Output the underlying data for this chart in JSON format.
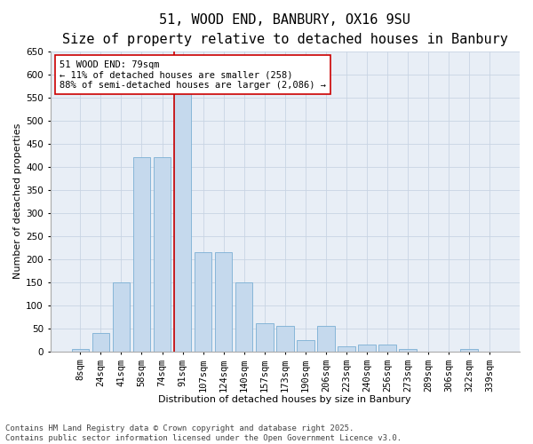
{
  "title": "51, WOOD END, BANBURY, OX16 9SU",
  "subtitle": "Size of property relative to detached houses in Banbury",
  "xlabel": "Distribution of detached houses by size in Banbury",
  "ylabel": "Number of detached properties",
  "categories": [
    "8sqm",
    "24sqm",
    "41sqm",
    "58sqm",
    "74sqm",
    "91sqm",
    "107sqm",
    "124sqm",
    "140sqm",
    "157sqm",
    "173sqm",
    "190sqm",
    "206sqm",
    "223sqm",
    "240sqm",
    "256sqm",
    "273sqm",
    "289sqm",
    "306sqm",
    "322sqm",
    "339sqm"
  ],
  "values": [
    5,
    40,
    150,
    420,
    420,
    570,
    215,
    215,
    150,
    60,
    55,
    25,
    55,
    10,
    15,
    15,
    5,
    0,
    0,
    5,
    0
  ],
  "bar_color": "#c5d9ed",
  "bar_edge_color": "#7aafd4",
  "grid_color": "#c8d4e3",
  "background_color": "#e8eef6",
  "vline_color": "#cc0000",
  "annotation_text": "51 WOOD END: 79sqm\n← 11% of detached houses are smaller (258)\n88% of semi-detached houses are larger (2,086) →",
  "annotation_box_color": "#ffffff",
  "annotation_box_edge_color": "#cc0000",
  "ylim": [
    0,
    650
  ],
  "yticks": [
    0,
    50,
    100,
    150,
    200,
    250,
    300,
    350,
    400,
    450,
    500,
    550,
    600,
    650
  ],
  "footer": "Contains HM Land Registry data © Crown copyright and database right 2025.\nContains public sector information licensed under the Open Government Licence v3.0.",
  "title_fontsize": 11,
  "subtitle_fontsize": 9,
  "axis_label_fontsize": 8,
  "tick_fontsize": 7.5,
  "annotation_fontsize": 7.5,
  "footer_fontsize": 6.5
}
